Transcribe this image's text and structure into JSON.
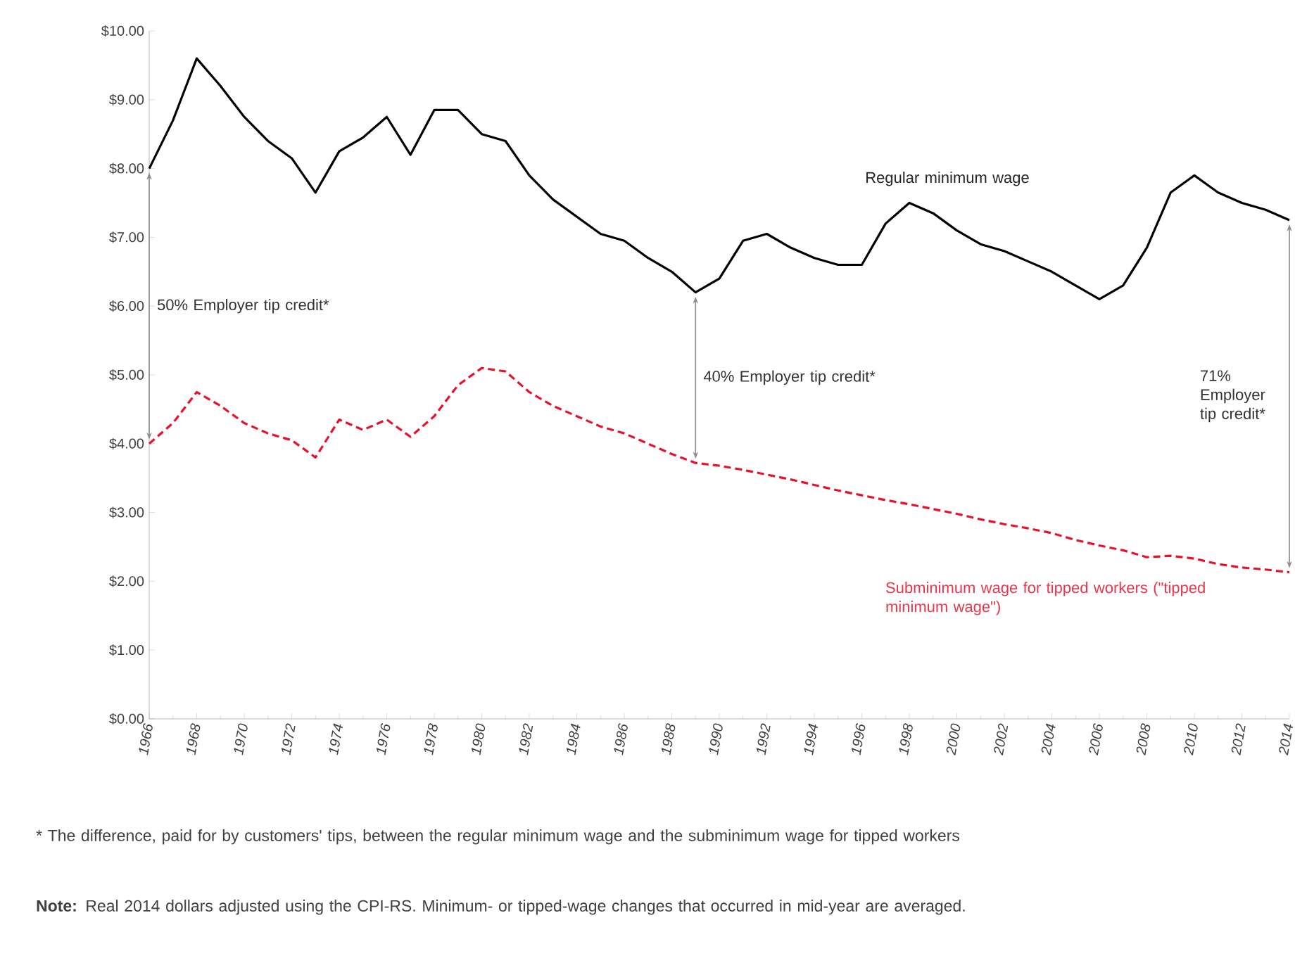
{
  "chart_data": {
    "type": "line",
    "x": [
      1966,
      1967,
      1968,
      1969,
      1970,
      1971,
      1972,
      1973,
      1974,
      1975,
      1976,
      1977,
      1978,
      1979,
      1980,
      1981,
      1982,
      1983,
      1984,
      1985,
      1986,
      1987,
      1988,
      1989,
      1990,
      1991,
      1992,
      1993,
      1994,
      1995,
      1996,
      1997,
      1998,
      1999,
      2000,
      2001,
      2002,
      2003,
      2004,
      2005,
      2006,
      2007,
      2008,
      2009,
      2010,
      2011,
      2012,
      2013,
      2014
    ],
    "series": [
      {
        "name": "Regular minimum wage",
        "color": "#000000",
        "line_style": "solid",
        "values": [
          8.0,
          8.7,
          9.6,
          9.2,
          8.75,
          8.4,
          8.15,
          7.65,
          8.25,
          8.45,
          8.75,
          8.2,
          8.85,
          8.85,
          8.5,
          8.4,
          7.9,
          7.55,
          7.3,
          7.05,
          6.95,
          6.7,
          6.5,
          6.2,
          6.4,
          6.95,
          7.05,
          6.85,
          6.7,
          6.6,
          6.6,
          7.2,
          7.5,
          7.35,
          7.1,
          6.9,
          6.8,
          6.65,
          6.5,
          6.3,
          6.1,
          6.3,
          6.85,
          7.65,
          7.9,
          7.65,
          7.5,
          7.4,
          7.25
        ]
      },
      {
        "name": "Subminimum wage for tipped workers (\"tipped minimum wage\")",
        "color": "#e8112d",
        "line_style": "dashed",
        "values": [
          4.0,
          4.3,
          4.75,
          4.55,
          4.3,
          4.15,
          4.05,
          3.8,
          4.35,
          4.2,
          4.35,
          4.1,
          4.4,
          4.85,
          5.1,
          5.05,
          4.75,
          4.55,
          4.4,
          4.25,
          4.15,
          4.0,
          3.85,
          3.72,
          3.68,
          3.62,
          3.55,
          3.48,
          3.4,
          3.32,
          3.25,
          3.18,
          3.12,
          3.05,
          2.98,
          2.9,
          2.83,
          2.77,
          2.7,
          2.6,
          2.52,
          2.45,
          2.35,
          2.37,
          2.33,
          2.25,
          2.2,
          2.17,
          2.13
        ]
      }
    ],
    "xlim": [
      1966,
      2014
    ],
    "xticks": [
      1966,
      1968,
      1970,
      1972,
      1974,
      1976,
      1978,
      1980,
      1982,
      1984,
      1986,
      1988,
      1990,
      1992,
      1994,
      1996,
      1998,
      2000,
      2002,
      2004,
      2006,
      2008,
      2010,
      2012,
      2014
    ],
    "ylim": [
      0,
      10
    ],
    "yticks": [
      {
        "value": 0,
        "label": "$0.00"
      },
      {
        "value": 1,
        "label": "$1.00"
      },
      {
        "value": 2,
        "label": "$2.00"
      },
      {
        "value": 3,
        "label": "$3.00"
      },
      {
        "value": 4,
        "label": "$4.00"
      },
      {
        "value": 5,
        "label": "$5.00"
      },
      {
        "value": 6,
        "label": "$6.00"
      },
      {
        "value": 7,
        "label": "$7.00"
      },
      {
        "value": 8,
        "label": "$8.00"
      },
      {
        "value": 9,
        "label": "$9.00"
      },
      {
        "value": 10,
        "label": "$10.00"
      }
    ],
    "grid": false,
    "legend": false,
    "marker": "none",
    "annotations": [
      "50% Employer tip credit*",
      "40% Employer tip credit*",
      "71% Employer tip credit*",
      "* The difference, paid for by customers' tips, between the regular minimum wage and the subminimum wage for tipped workers",
      "**Note:** Real 2014 dollars adjusted using the CPI-RS. Minimum- or tipped-wage changes that occurred in mid-year are averaged."
    ]
  }
}
